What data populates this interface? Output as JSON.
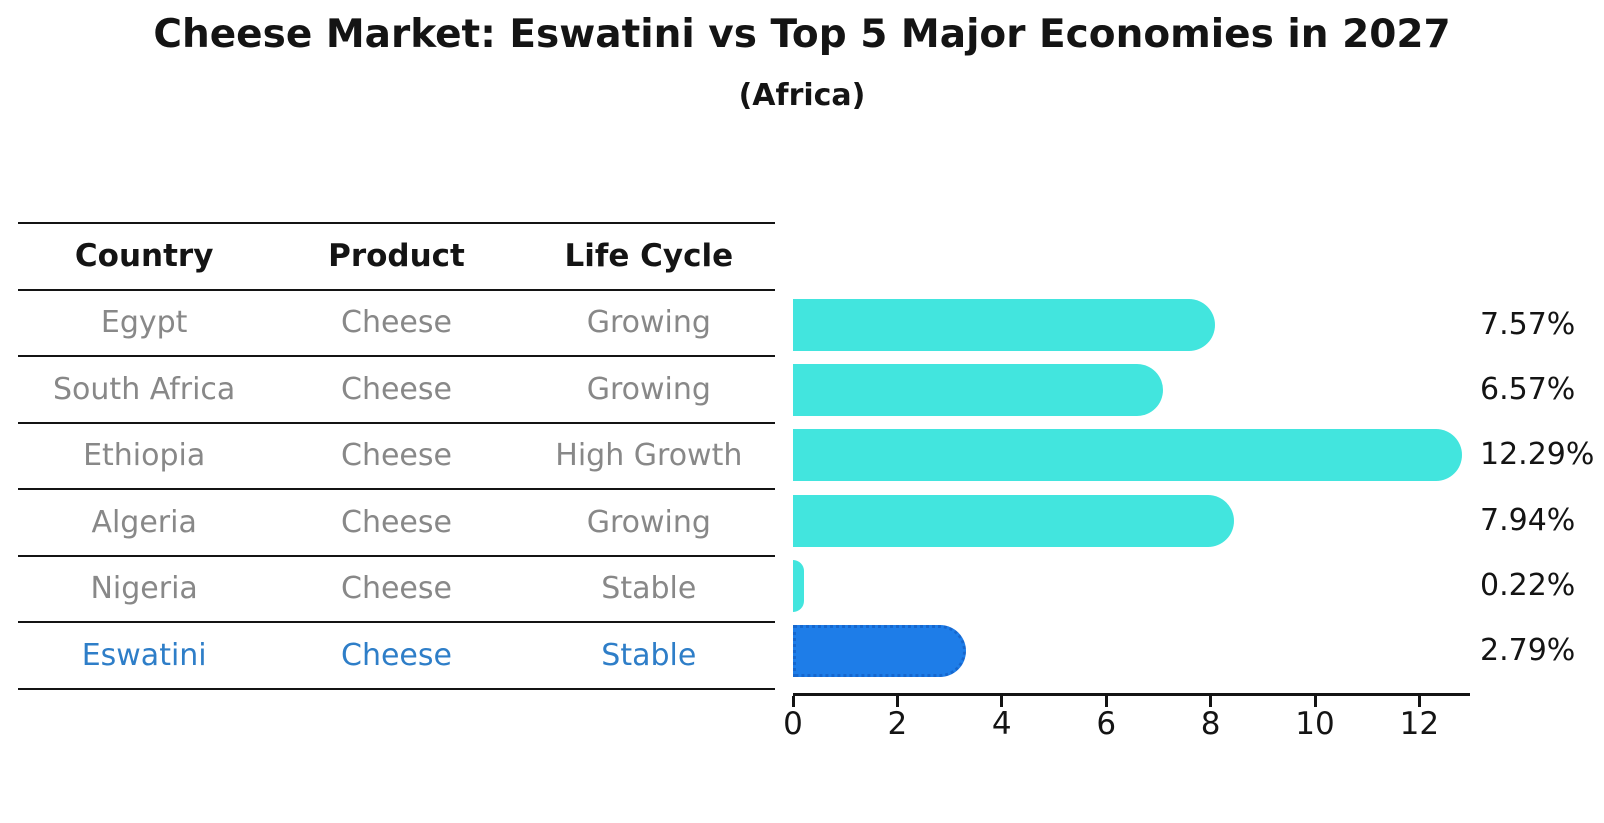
{
  "chart": {
    "title": "Cheese Market: Eswatini vs Top 5 Major Economies in 2027",
    "subtitle": "(Africa)"
  },
  "table": {
    "headers": [
      "Country",
      "Product",
      "Life Cycle"
    ],
    "rows": [
      {
        "cells": [
          "Egypt",
          "Cheese",
          "Growing"
        ],
        "highlighted": false
      },
      {
        "cells": [
          "South Africa",
          "Cheese",
          "Growing"
        ],
        "highlighted": false
      },
      {
        "cells": [
          "Ethiopia",
          "Cheese",
          "High Growth"
        ],
        "highlighted": false
      },
      {
        "cells": [
          "Algeria",
          "Cheese",
          "Growing"
        ],
        "highlighted": false
      },
      {
        "cells": [
          "Nigeria",
          "Cheese",
          "Stable"
        ],
        "highlighted": false
      },
      {
        "cells": [
          "Eswatini",
          "Cheese",
          "Stable"
        ],
        "highlighted": true
      }
    ]
  },
  "chart_data": {
    "type": "bar",
    "orientation": "horizontal",
    "title": "Cheese Market: Eswatini vs Top 5 Major Economies in 2027",
    "subtitle": "(Africa)",
    "categories": [
      "Egypt",
      "South Africa",
      "Ethiopia",
      "Algeria",
      "Nigeria",
      "Eswatini"
    ],
    "values": [
      7.57,
      6.57,
      12.29,
      7.94,
      0.22,
      2.79
    ],
    "value_labels": [
      "7.57%",
      "6.57%",
      "12.29%",
      "7.94%",
      "0.22%",
      "2.79%"
    ],
    "xlabel": "",
    "ylabel": "",
    "xticks": [
      0,
      2,
      4,
      6,
      8,
      10,
      12
    ],
    "xlim": [
      0,
      12.97
    ],
    "grid": false,
    "legend": "none",
    "bar_color": "#42E5DE",
    "highlight_index": 5,
    "highlight_color": "#1E7DE8",
    "highlight_edge_style": "dotted",
    "highlight_text_color": "#2E7EC8",
    "table_text_color": "#888888",
    "axis_color": "#141414"
  }
}
